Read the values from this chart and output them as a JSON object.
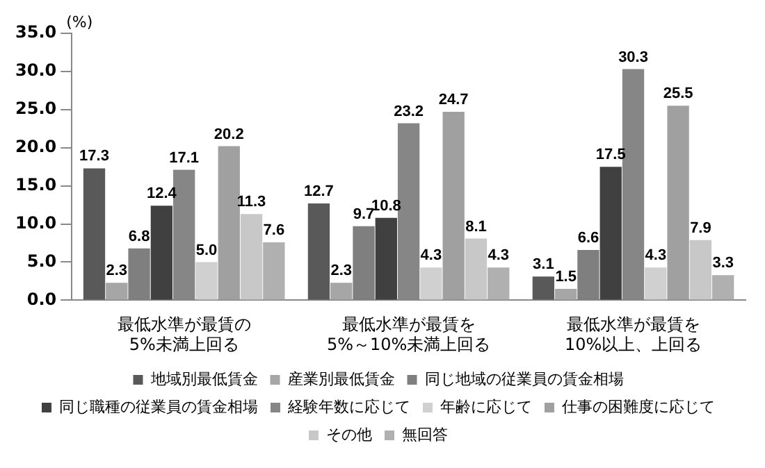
{
  "chart_data": {
    "type": "bar",
    "ylabel": "(%)",
    "categories": [
      "最低水準が最賃の\n5%未満上回る",
      "最低水準が最賃を\n5%～10%未満上回る",
      "最低水準が最賃を\n10%以上、上回る"
    ],
    "series": [
      {
        "name": "地域別最低賃金",
        "color": "#595959",
        "values": [
          17.3,
          12.7,
          3.1
        ],
        "value_labels": [
          "17.3",
          "12.7",
          "3.1"
        ]
      },
      {
        "name": "産業別最低賃金",
        "color": "#a6a6a6",
        "values": [
          2.3,
          2.3,
          1.5
        ],
        "value_labels": [
          "2.3",
          "2.3",
          "1.5"
        ]
      },
      {
        "name": "同じ地域の従業員の賃金相場",
        "color": "#7f7f7f",
        "values": [
          6.8,
          9.7,
          6.6
        ],
        "value_labels": [
          "6.8",
          "9.7",
          "6.6"
        ]
      },
      {
        "name": "同じ職種の従業員の賃金相場",
        "color": "#404040",
        "values": [
          12.4,
          10.8,
          17.5
        ],
        "value_labels": [
          "12.4",
          "10.8",
          "17.5"
        ]
      },
      {
        "name": "経験年数に応じて",
        "color": "#868686",
        "values": [
          17.1,
          23.2,
          30.3
        ],
        "value_labels": [
          "17.1",
          "23.2",
          "30.3"
        ]
      },
      {
        "name": "年齢に応じて",
        "color": "#d0d0d0",
        "values": [
          5.0,
          4.3,
          4.3
        ],
        "value_labels": [
          "5.0",
          "4.3",
          "4.3"
        ]
      },
      {
        "name": "仕事の困難度に応じて",
        "color": "#a0a0a0",
        "values": [
          20.2,
          24.7,
          25.5
        ],
        "value_labels": [
          "20.2",
          "24.7",
          "25.5"
        ]
      },
      {
        "name": "その他",
        "color": "#c8c8c8",
        "values": [
          11.3,
          8.1,
          7.9
        ],
        "value_labels": [
          "11.3",
          "8.1",
          "7.9"
        ]
      },
      {
        "name": "無回答",
        "color": "#b0b0b0",
        "values": [
          7.6,
          4.3,
          3.3
        ],
        "value_labels": [
          "7.6",
          "4.3",
          "3.3"
        ]
      }
    ],
    "ylim": [
      0,
      35
    ],
    "yticks": [
      {
        "value": 0,
        "label": "0.0"
      },
      {
        "value": 5,
        "label": "5.0"
      },
      {
        "value": 10,
        "label": "10.0"
      },
      {
        "value": 15,
        "label": "15.0"
      },
      {
        "value": 20,
        "label": "20.0"
      },
      {
        "value": 25,
        "label": "25.0"
      },
      {
        "value": 30,
        "label": "30.0"
      },
      {
        "value": 35,
        "label": "35.0"
      }
    ],
    "grid": false,
    "legend": "bottom"
  }
}
